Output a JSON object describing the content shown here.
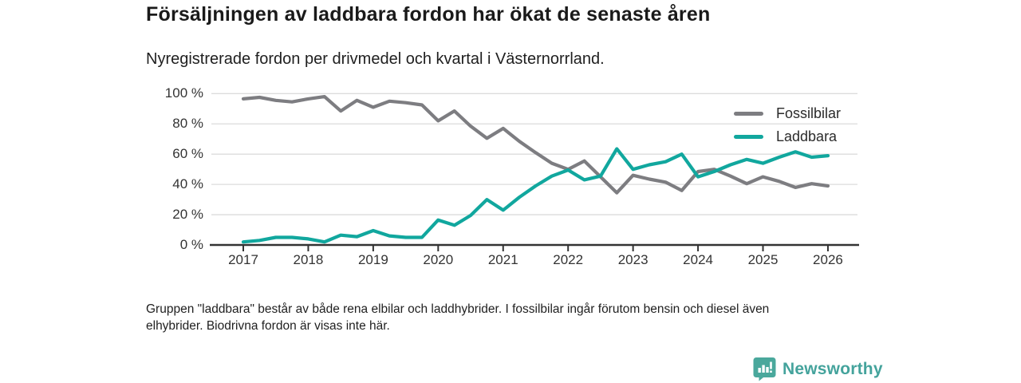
{
  "header": {
    "title": "Försäljningen av laddbara fordon har ökat de senaste åren",
    "subtitle": "Nyregistrerade fordon per drivmedel och kvartal i Västernorrland."
  },
  "chart_data": {
    "type": "line",
    "title": "Försäljningen av laddbara fordon har ökat de senaste åren",
    "subtitle": "Nyregistrerade fordon per drivmedel och kvartal i Västernorrland.",
    "x_unit": "quarter",
    "x_start": "2017 Q1",
    "x_end": "2026 Q1",
    "x_tick_labels": [
      "2017",
      "2018",
      "2019",
      "2020",
      "2021",
      "2022",
      "2023",
      "2024",
      "2025",
      "2026"
    ],
    "y_tick_labels": [
      "100 %",
      "80 %",
      "60 %",
      "40 %",
      "20 %",
      "0 %"
    ],
    "ylim": [
      0,
      100
    ],
    "grid": true,
    "legend_position": "top-right",
    "series": [
      {
        "name": "Fossilbilar",
        "color": "#7d7d81",
        "values": [
          96.5,
          97.5,
          95.5,
          94.5,
          96.5,
          98,
          88.5,
          95.5,
          91,
          95,
          94,
          92.5,
          82,
          88.5,
          78.5,
          70.5,
          77,
          68.5,
          61,
          54,
          50,
          55.5,
          45,
          34.5,
          46,
          43.5,
          41.5,
          36,
          48.5,
          50,
          45.5,
          40.5,
          45,
          42,
          38,
          40.5,
          39
        ]
      },
      {
        "name": "Laddbara",
        "color": "#11a79e",
        "values": [
          2,
          3,
          5,
          5,
          4,
          2,
          6.5,
          5.5,
          9.5,
          6,
          5,
          5,
          16.5,
          13,
          19.5,
          30,
          23,
          31.5,
          39,
          45.5,
          49.5,
          43,
          45.5,
          63.5,
          50,
          53,
          55,
          60,
          45,
          48.5,
          53,
          56.5,
          54,
          58,
          61.5,
          58,
          59
        ]
      }
    ]
  },
  "footer": {
    "note": "Gruppen \"laddbara\" består av både rena elbilar och laddhybrider. I fossilbilar ingår förutom bensin och diesel även\nelhybrider. Biodrivna fordon är visas inte här."
  },
  "branding": {
    "logo_text": "Newsworthy",
    "logo_color": "#44a39c"
  }
}
